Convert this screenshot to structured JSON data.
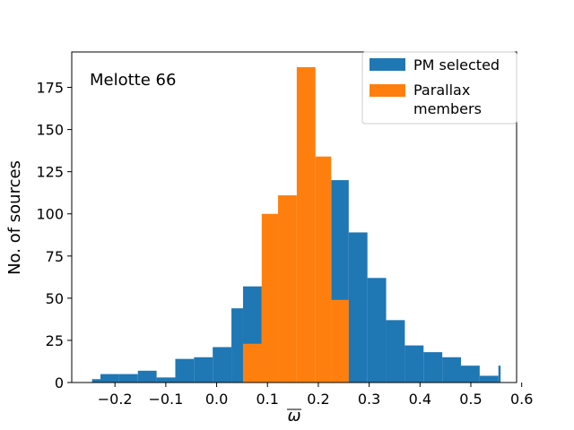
{
  "chart_data": {
    "type": "bar",
    "annotation": "Melotte 66",
    "xlabel": "ω",
    "ylabel": "No. of sources",
    "xlim": [
      -0.285,
      0.59
    ],
    "ylim": [
      0,
      196
    ],
    "xticks": [
      -0.2,
      -0.1,
      0.0,
      0.1,
      0.2,
      0.3,
      0.4,
      0.5,
      0.6
    ],
    "xtick_labels": [
      "−0.2",
      "−0.1",
      "0.0",
      "0.1",
      "0.2",
      "0.3",
      "0.4",
      "0.5",
      "0.6"
    ],
    "yticks": [
      0,
      25,
      50,
      75,
      100,
      125,
      150,
      175
    ],
    "ytick_labels": [
      "0",
      "25",
      "50",
      "75",
      "100",
      "125",
      "150",
      "175"
    ],
    "legend_position": "top-right",
    "series": [
      {
        "name": "PM selected",
        "color": "#1f77b4",
        "bins": [
          {
            "x0": -0.245,
            "x1": -0.2285,
            "count": 2
          },
          {
            "x0": -0.2285,
            "x1": -0.1917,
            "count": 5
          },
          {
            "x0": -0.1917,
            "x1": -0.1549,
            "count": 5
          },
          {
            "x0": -0.1549,
            "x1": -0.1181,
            "count": 7
          },
          {
            "x0": -0.1181,
            "x1": -0.0813,
            "count": 3
          },
          {
            "x0": -0.0813,
            "x1": -0.0445,
            "count": 14
          },
          {
            "x0": -0.0445,
            "x1": -0.0077,
            "count": 15
          },
          {
            "x0": -0.0077,
            "x1": 0.0291,
            "count": 21
          },
          {
            "x0": 0.0291,
            "x1": 0.0519,
            "count": 44
          },
          {
            "x0": 0.0519,
            "x1": 0.0887,
            "count": 57
          },
          {
            "x0": 0.0887,
            "x1": 0.2254,
            "count": 0
          },
          {
            "x0": 0.2254,
            "x1": 0.2598,
            "count": 120
          },
          {
            "x0": 0.2598,
            "x1": 0.2966,
            "count": 89
          },
          {
            "x0": 0.2966,
            "x1": 0.3334,
            "count": 62
          },
          {
            "x0": 0.3334,
            "x1": 0.3702,
            "count": 37
          },
          {
            "x0": 0.3702,
            "x1": 0.407,
            "count": 22
          },
          {
            "x0": 0.407,
            "x1": 0.4438,
            "count": 18
          },
          {
            "x0": 0.4438,
            "x1": 0.4806,
            "count": 15
          },
          {
            "x0": 0.4806,
            "x1": 0.5174,
            "count": 10
          },
          {
            "x0": 0.5174,
            "x1": 0.5542,
            "count": 4
          },
          {
            "x0": 0.5542,
            "x1": 0.5585,
            "count": 10
          }
        ]
      },
      {
        "name": "Parallax\nmembers",
        "legend_lines": [
          "Parallax",
          "members"
        ],
        "color": "#ff7f0e",
        "bins": [
          {
            "x0": 0.0519,
            "x1": 0.0887,
            "count": 23
          },
          {
            "x0": 0.0887,
            "x1": 0.1208,
            "count": 100
          },
          {
            "x0": 0.1208,
            "x1": 0.1576,
            "count": 111
          },
          {
            "x0": 0.1576,
            "x1": 0.1944,
            "count": 187
          },
          {
            "x0": 0.1944,
            "x1": 0.2254,
            "count": 134
          },
          {
            "x0": 0.2254,
            "x1": 0.2598,
            "count": 49
          }
        ]
      }
    ]
  }
}
